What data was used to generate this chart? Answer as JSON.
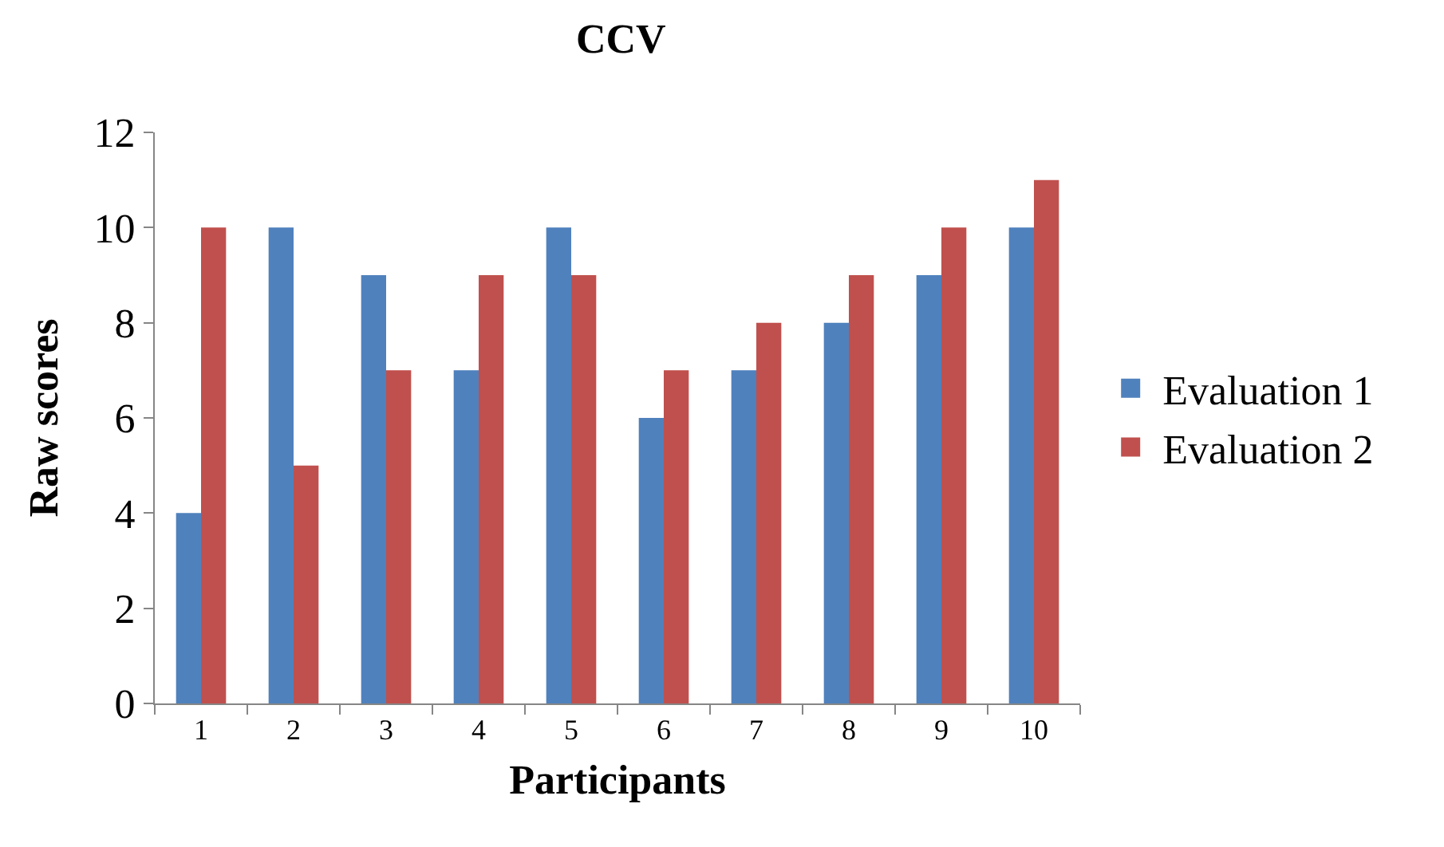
{
  "chart_data": {
    "type": "bar",
    "title": "CCV",
    "xlabel": "Participants",
    "ylabel": "Raw scores",
    "categories": [
      "1",
      "2",
      "3",
      "4",
      "5",
      "6",
      "7",
      "8",
      "9",
      "10"
    ],
    "series": [
      {
        "name": "Evaluation 1",
        "color": "#4f81bd",
        "values": [
          4,
          10,
          9,
          7,
          10,
          6,
          7,
          8,
          9,
          10
        ]
      },
      {
        "name": "Evaluation 2",
        "color": "#c0504d",
        "values": [
          10,
          5,
          7,
          9,
          9,
          7,
          8,
          9,
          10,
          11
        ]
      }
    ],
    "ylim": [
      0,
      12
    ],
    "yticks": [
      0,
      2,
      4,
      6,
      8,
      10,
      12
    ],
    "grid": false,
    "legend": "right"
  }
}
